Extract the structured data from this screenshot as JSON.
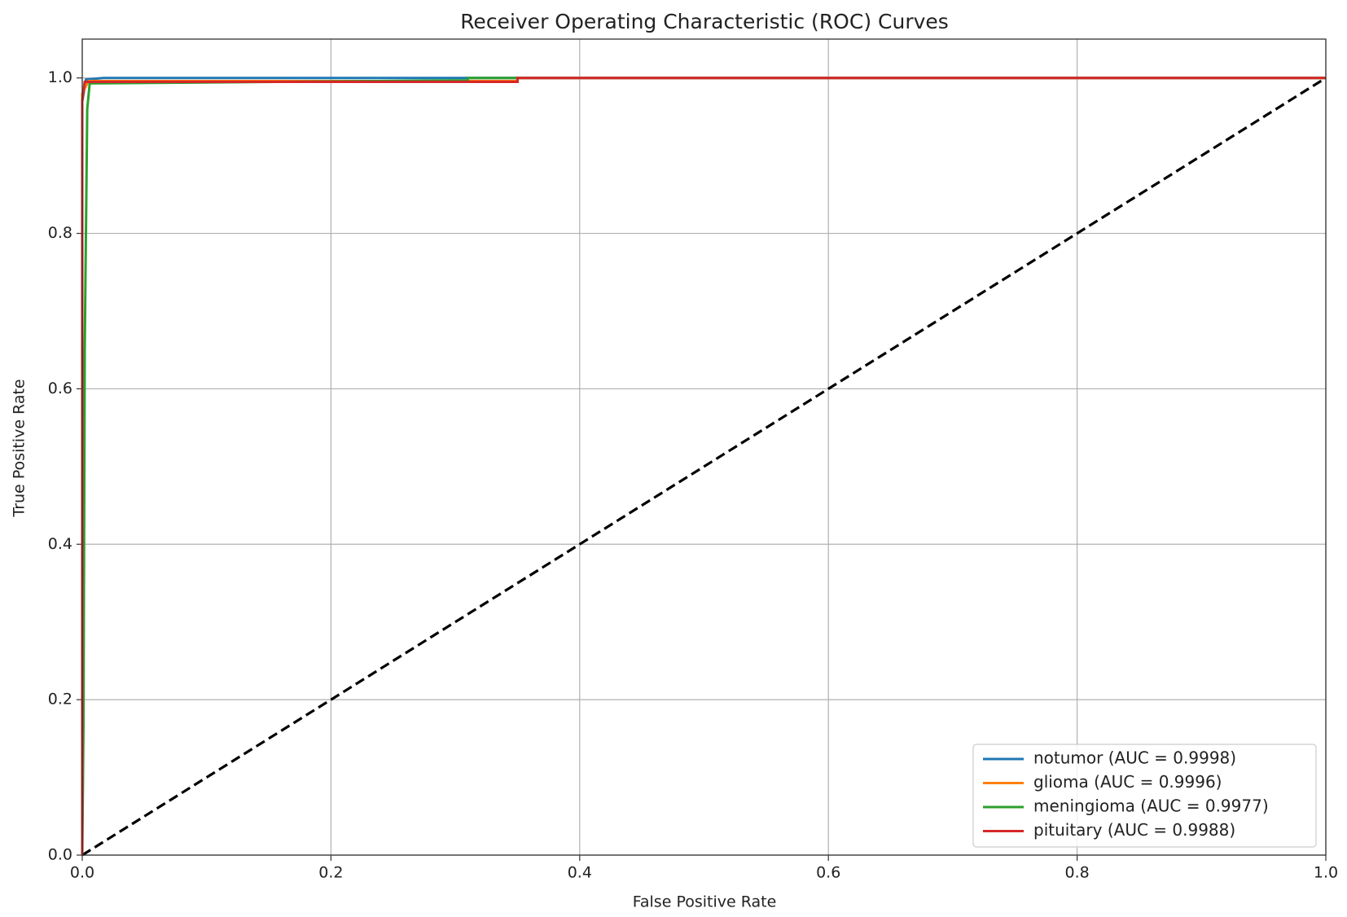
{
  "chart_data": {
    "type": "line",
    "title": "Receiver Operating Characteristic (ROC) Curves",
    "xlabel": "False Positive Rate",
    "ylabel": "True Positive Rate",
    "xlim": [
      0,
      1
    ],
    "ylim": [
      0,
      1.05
    ],
    "xticks": [
      {
        "value": 0,
        "label": "0.0"
      },
      0.2,
      0.4,
      0.6,
      0.8,
      {
        "value": 1,
        "label": "1.0"
      }
    ],
    "yticks": [
      {
        "value": 0,
        "label": "0.0"
      },
      0.2,
      0.4,
      0.6,
      0.8,
      {
        "value": 1,
        "label": "1.0"
      }
    ],
    "grid": true,
    "legend": "lower right",
    "series": [
      {
        "name": "notumor (AUC = 0.9998)",
        "color": "#1f77b4",
        "x": [
          0,
          0,
          0.003,
          0.017,
          0.12,
          1
        ],
        "values": [
          0,
          0.97,
          0.998,
          1,
          1,
          1
        ]
      },
      {
        "name": "glioma (AUC = 0.9996)",
        "color": "#ff7f0e",
        "x": [
          0,
          0,
          0.005,
          0.35,
          0.35,
          1
        ],
        "values": [
          0,
          0.98,
          0.996,
          0.996,
          1,
          1
        ]
      },
      {
        "name": "meningioma (AUC = 0.9977)",
        "color": "#2ca02c",
        "x": [
          0,
          0.001,
          0.002,
          0.004,
          0.006,
          0.31,
          0.31,
          1
        ],
        "values": [
          0,
          0.17,
          0.65,
          0.96,
          0.993,
          0.997,
          1,
          1
        ]
      },
      {
        "name": "pituitary (AUC = 0.9988)",
        "color": "#d62728",
        "x": [
          0,
          0,
          0.002,
          0.35,
          0.35,
          1
        ],
        "values": [
          0,
          0.97,
          0.995,
          0.995,
          1,
          1
        ]
      }
    ],
    "reference_line": {
      "color": "#000000",
      "x": [
        0,
        1
      ],
      "values": [
        0,
        1
      ]
    }
  }
}
